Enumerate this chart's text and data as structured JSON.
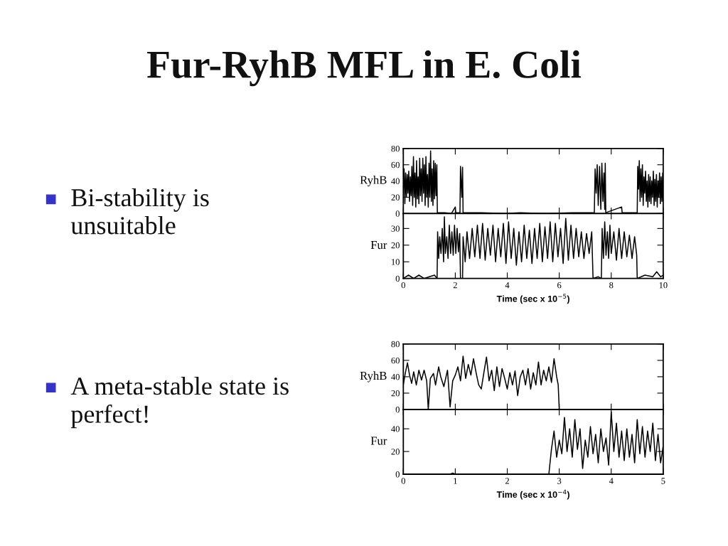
{
  "chart_data": [
    {
      "type": "other",
      "title": "Fur-RyhB MFL in E. Coli",
      "annotations": [
        "Bi-stability is\nunsuitable",
        "A meta-stable state is\nperfect!"
      ]
    },
    {
      "type": "line",
      "ylabel": "RyhB",
      "xlim": [
        0,
        10
      ],
      "xticks": [
        0,
        2,
        4,
        6,
        8,
        10
      ],
      "ylim": [
        0,
        80
      ],
      "yticks": [
        0,
        20,
        40,
        60,
        80
      ],
      "tick_labels": "y",
      "series": [
        {
          "color": "#000000",
          "x": [
            0,
            0.03,
            0.06,
            0.09,
            0.12,
            0.15,
            0.18,
            0.21,
            0.24,
            0.27,
            0.3,
            0.33,
            0.36,
            0.39,
            0.42,
            0.45,
            0.48,
            0.51,
            0.54,
            0.57,
            0.6,
            0.63,
            0.66,
            0.69,
            0.72,
            0.75,
            0.78,
            0.81,
            0.84,
            0.87,
            0.9,
            0.93,
            0.96,
            0.99,
            1.02,
            1.05,
            1.08,
            1.11,
            1.14,
            1.17,
            1.2,
            1.23,
            1.26,
            1.29,
            1.31,
            1.6,
            1.85,
            2.0,
            2.02,
            2.18,
            2.2,
            2.25,
            2.28,
            2.3,
            3.0,
            3.9,
            4.5,
            5.5,
            6.5,
            7.35,
            7.38,
            7.42,
            7.46,
            7.5,
            7.55,
            7.6,
            7.64,
            7.68,
            7.72,
            7.75,
            7.77,
            7.79,
            8.4,
            8.42,
            9.0,
            9.02,
            9.05,
            9.08,
            9.11,
            9.14,
            9.17,
            9.2,
            9.23,
            9.26,
            9.29,
            9.32,
            9.35,
            9.38,
            9.41,
            9.44,
            9.47,
            9.5,
            9.53,
            9.56,
            9.59,
            9.62,
            9.65,
            9.68,
            9.71,
            9.74,
            9.77,
            9.8,
            9.83,
            9.86,
            9.89,
            9.92,
            9.95,
            9.98,
            10
          ],
          "values": [
            30,
            55,
            12,
            50,
            20,
            48,
            25,
            52,
            15,
            45,
            22,
            58,
            10,
            70,
            20,
            50,
            8,
            65,
            18,
            45,
            12,
            68,
            22,
            55,
            15,
            68,
            25,
            60,
            10,
            70,
            20,
            48,
            8,
            62,
            20,
            77,
            15,
            55,
            10,
            65,
            18,
            62,
            22,
            60,
            1,
            1,
            0,
            8,
            1,
            1,
            58,
            20,
            57,
            1,
            1,
            0,
            1,
            0,
            1,
            1,
            55,
            25,
            60,
            10,
            58,
            5,
            62,
            15,
            50,
            5,
            62,
            1,
            8,
            1,
            1,
            58,
            30,
            65,
            15,
            55,
            20,
            60,
            10,
            45,
            25,
            52,
            15,
            40,
            8,
            48,
            15,
            45,
            12,
            40,
            20,
            52,
            10,
            42,
            15,
            48,
            8,
            40,
            20,
            50,
            12,
            45,
            15,
            50,
            30
          ]
        }
      ]
    },
    {
      "type": "line",
      "ylabel": "Fur",
      "xlabel": "Time (sec x 10$^{−5}$)",
      "xlim": [
        0,
        10
      ],
      "xticks": [
        0,
        2,
        4,
        6,
        8,
        10
      ],
      "ylim": [
        0,
        39
      ],
      "yticks": [
        0,
        10,
        20,
        30
      ],
      "series": [
        {
          "color": "#000000",
          "x": [
            0,
            0.2,
            0.4,
            0.6,
            0.8,
            1.0,
            1.2,
            1.3,
            1.32,
            1.36,
            1.4,
            1.45,
            1.5,
            1.55,
            1.58,
            1.62,
            1.67,
            1.72,
            1.77,
            1.82,
            1.87,
            1.92,
            1.97,
            2.02,
            2.07,
            2.12,
            2.17,
            2.2,
            2.28,
            2.3,
            2.38,
            2.45,
            2.55,
            2.65,
            2.75,
            2.85,
            2.95,
            3.05,
            3.15,
            3.25,
            3.35,
            3.45,
            3.55,
            3.65,
            3.75,
            3.85,
            3.95,
            4.05,
            4.15,
            4.25,
            4.35,
            4.45,
            4.55,
            4.65,
            4.75,
            4.85,
            4.95,
            5.05,
            5.15,
            5.25,
            5.35,
            5.45,
            5.55,
            5.65,
            5.75,
            5.85,
            5.95,
            6.05,
            6.15,
            6.25,
            6.35,
            6.45,
            6.55,
            6.65,
            6.75,
            6.85,
            6.95,
            7.05,
            7.15,
            7.25,
            7.3,
            7.5,
            7.62,
            7.65,
            7.7,
            7.75,
            7.8,
            7.85,
            7.9,
            7.95,
            8.0,
            8.1,
            8.2,
            8.3,
            8.4,
            8.5,
            8.6,
            8.7,
            8.8,
            8.9,
            8.98,
            9.0,
            9.3,
            9.6,
            9.75,
            9.9,
            10
          ],
          "values": [
            0,
            2,
            0,
            2,
            0,
            1,
            2,
            0,
            28,
            12,
            25,
            15,
            30,
            10,
            37,
            15,
            25,
            12,
            32,
            15,
            28,
            14,
            32,
            15,
            30,
            16,
            27,
            0,
            0,
            25,
            10,
            28,
            12,
            30,
            13,
            32,
            12,
            33,
            11,
            30,
            14,
            32,
            10,
            30,
            13,
            33,
            9,
            34,
            12,
            30,
            8,
            28,
            10,
            32,
            12,
            29,
            9,
            30,
            12,
            33,
            10,
            31,
            12,
            34,
            10,
            33,
            13,
            30,
            9,
            36,
            11,
            32,
            12,
            30,
            13,
            28,
            12,
            27,
            15,
            28,
            0,
            1,
            0,
            30,
            12,
            34,
            14,
            28,
            12,
            32,
            15,
            28,
            11,
            30,
            12,
            28,
            13,
            26,
            12,
            25,
            14,
            0,
            2,
            1,
            4,
            1,
            2
          ]
        }
      ]
    },
    {
      "type": "line",
      "ylabel": "RyhB",
      "xlim": [
        0,
        5
      ],
      "xticks": [
        0,
        1,
        2,
        3,
        4,
        5
      ],
      "ylim": [
        0,
        80
      ],
      "yticks": [
        0,
        20,
        40,
        60,
        80
      ],
      "tick_labels": "y",
      "series": [
        {
          "color": "#000000",
          "x": [
            0,
            0.04,
            0.08,
            0.12,
            0.16,
            0.2,
            0.25,
            0.3,
            0.35,
            0.4,
            0.45,
            0.48,
            0.52,
            0.58,
            0.62,
            0.68,
            0.72,
            0.78,
            0.85,
            0.9,
            0.95,
            1.0,
            1.05,
            1.1,
            1.15,
            1.2,
            1.25,
            1.3,
            1.35,
            1.4,
            1.45,
            1.5,
            1.55,
            1.6,
            1.65,
            1.7,
            1.75,
            1.8,
            1.85,
            1.9,
            1.95,
            2.0,
            2.05,
            2.1,
            2.15,
            2.2,
            2.25,
            2.3,
            2.35,
            2.4,
            2.45,
            2.5,
            2.55,
            2.6,
            2.65,
            2.7,
            2.75,
            2.8,
            2.85,
            2.9,
            2.95,
            2.98,
            3.0,
            5
          ],
          "values": [
            30,
            45,
            57,
            42,
            32,
            46,
            30,
            48,
            36,
            48,
            35,
            0,
            38,
            44,
            30,
            52,
            40,
            28,
            48,
            3,
            35,
            42,
            52,
            35,
            65,
            38,
            55,
            42,
            62,
            45,
            30,
            25,
            45,
            64,
            35,
            48,
            23,
            52,
            28,
            50,
            38,
            25,
            45,
            30,
            47,
            17,
            40,
            48,
            30,
            50,
            25,
            45,
            30,
            58,
            30,
            48,
            35,
            52,
            33,
            62,
            40,
            30,
            0,
            0
          ]
        }
      ]
    },
    {
      "type": "line",
      "ylabel": "Fur",
      "xlabel": "Time (sec x 10$^{−4}$)",
      "xlim": [
        0,
        5
      ],
      "xticks": [
        0,
        1,
        2,
        3,
        4,
        5
      ],
      "ylim": [
        0,
        57
      ],
      "yticks": [
        0,
        20,
        40
      ],
      "series": [
        {
          "color": "#000000",
          "x": [
            0,
            0.9,
            0.95,
            1.0,
            2.8,
            2.85,
            2.9,
            2.95,
            3.0,
            3.05,
            3.1,
            3.15,
            3.2,
            3.25,
            3.3,
            3.35,
            3.4,
            3.45,
            3.5,
            3.55,
            3.6,
            3.65,
            3.7,
            3.75,
            3.8,
            3.85,
            3.9,
            3.95,
            4.0,
            4.05,
            4.1,
            4.15,
            4.2,
            4.25,
            4.3,
            4.35,
            4.4,
            4.45,
            4.5,
            4.55,
            4.6,
            4.65,
            4.7,
            4.75,
            4.8,
            4.85,
            4.9,
            4.95,
            5.0
          ],
          "values": [
            0,
            0,
            1,
            0,
            0,
            22,
            38,
            15,
            30,
            18,
            50,
            20,
            40,
            15,
            48,
            22,
            40,
            5,
            30,
            15,
            42,
            18,
            35,
            10,
            40,
            20,
            32,
            8,
            55,
            20,
            45,
            15,
            38,
            12,
            40,
            15,
            35,
            10,
            48,
            18,
            42,
            15,
            38,
            20,
            45,
            12,
            35,
            10,
            25
          ]
        }
      ]
    }
  ]
}
